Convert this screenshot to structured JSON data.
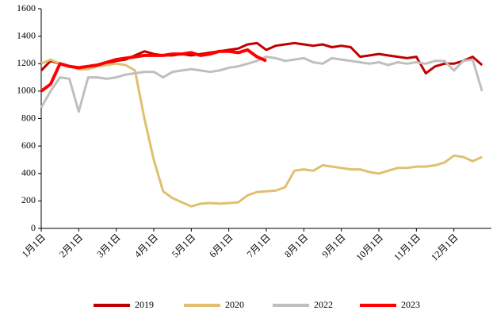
{
  "chart_data": {
    "type": "line",
    "categories": [
      "1月1日",
      null,
      null,
      null,
      "2月1日",
      null,
      null,
      null,
      "3月1日",
      null,
      null,
      null,
      "4月1日",
      null,
      null,
      null,
      "5月1日",
      null,
      null,
      null,
      "6月1日",
      null,
      null,
      null,
      "7月1日",
      null,
      null,
      null,
      "8月1日",
      null,
      null,
      null,
      "9月1日",
      null,
      null,
      null,
      "10月1日",
      null,
      null,
      null,
      "11月1日",
      null,
      null,
      null,
      "12月1日",
      null,
      null,
      null
    ],
    "ylim": [
      0,
      1600
    ],
    "yticks": [
      0,
      200,
      400,
      600,
      800,
      1000,
      1200,
      1400,
      1600
    ],
    "series": [
      {
        "name": "2019",
        "color": "#c00000",
        "values": [
          1150,
          1220,
          1200,
          1180,
          1170,
          1180,
          1190,
          1200,
          1220,
          1230,
          1260,
          1290,
          1270,
          1260,
          1260,
          1270,
          1260,
          1270,
          1280,
          1290,
          1300,
          1310,
          1340,
          1350,
          1300,
          1330,
          1340,
          1350,
          1340,
          1330,
          1340,
          1320,
          1330,
          1320,
          1250,
          1260,
          1270,
          1260,
          1250,
          1240,
          1250,
          1130,
          1180,
          1200,
          1200,
          1220,
          1250,
          1190
        ]
      },
      {
        "name": "2020",
        "color": "#e0c070",
        "values": [
          1200,
          1230,
          1200,
          1180,
          1160,
          1160,
          1180,
          1190,
          1200,
          1190,
          1150,
          800,
          500,
          270,
          220,
          190,
          160,
          180,
          185,
          180,
          185,
          190,
          240,
          265,
          270,
          275,
          300,
          420,
          430,
          420,
          460,
          450,
          440,
          430,
          430,
          410,
          400,
          420,
          440,
          440,
          450,
          450,
          460,
          480,
          530,
          520,
          490,
          520
        ]
      },
      {
        "name": "2022",
        "color": "#bfbfbf",
        "values": [
          880,
          1000,
          1100,
          1090,
          850,
          1100,
          1100,
          1090,
          1100,
          1120,
          1130,
          1140,
          1140,
          1100,
          1140,
          1150,
          1160,
          1150,
          1140,
          1150,
          1170,
          1180,
          1200,
          1220,
          1250,
          1240,
          1220,
          1230,
          1240,
          1210,
          1200,
          1240,
          1230,
          1220,
          1210,
          1200,
          1210,
          1190,
          1210,
          1200,
          1210,
          1200,
          1220,
          1220,
          1150,
          1220,
          1230,
          1000
        ]
      },
      {
        "name": "2023",
        "color": "#ff0000",
        "values": [
          1000,
          1050,
          1200,
          1180,
          1170,
          1180,
          1190,
          1210,
          1230,
          1240,
          1250,
          1260,
          1260,
          1260,
          1270,
          1270,
          1280,
          1260,
          1270,
          1290,
          1290,
          1280,
          1300,
          1250,
          1220,
          null,
          null,
          null,
          null,
          null,
          null,
          null,
          null,
          null,
          null,
          null,
          null,
          null,
          null,
          null,
          null,
          null,
          null,
          null,
          null,
          null,
          null,
          null
        ]
      }
    ]
  }
}
